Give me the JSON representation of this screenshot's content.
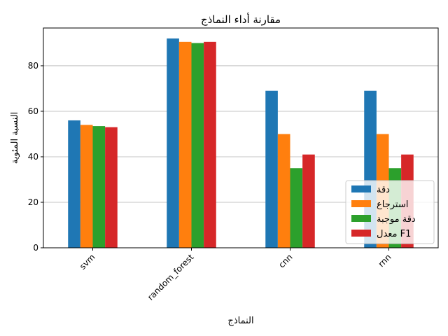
{
  "chart_data": {
    "type": "bar",
    "title": "مقارنة أداء النماذج",
    "xlabel": "النماذج",
    "ylabel": "النسبة المئوية",
    "categories": [
      "svm",
      "random_forest",
      "cnn",
      "rnn"
    ],
    "series": [
      {
        "name": "دقة",
        "color": "#1f77b4",
        "values": [
          56,
          92,
          69,
          69
        ]
      },
      {
        "name": "استرجاع",
        "color": "#ff7f0e",
        "values": [
          54,
          90.5,
          50,
          50
        ]
      },
      {
        "name": "دقة موجبة",
        "color": "#2ca02c",
        "values": [
          53.5,
          90,
          35,
          35
        ]
      },
      {
        "name": "معدل F1",
        "color": "#d62728",
        "values": [
          53,
          90.5,
          41,
          41
        ]
      }
    ],
    "ylim": [
      0,
      96.6
    ],
    "yticks": [
      0,
      20,
      40,
      60,
      80
    ],
    "grid": "y",
    "legend": "lower-right"
  }
}
